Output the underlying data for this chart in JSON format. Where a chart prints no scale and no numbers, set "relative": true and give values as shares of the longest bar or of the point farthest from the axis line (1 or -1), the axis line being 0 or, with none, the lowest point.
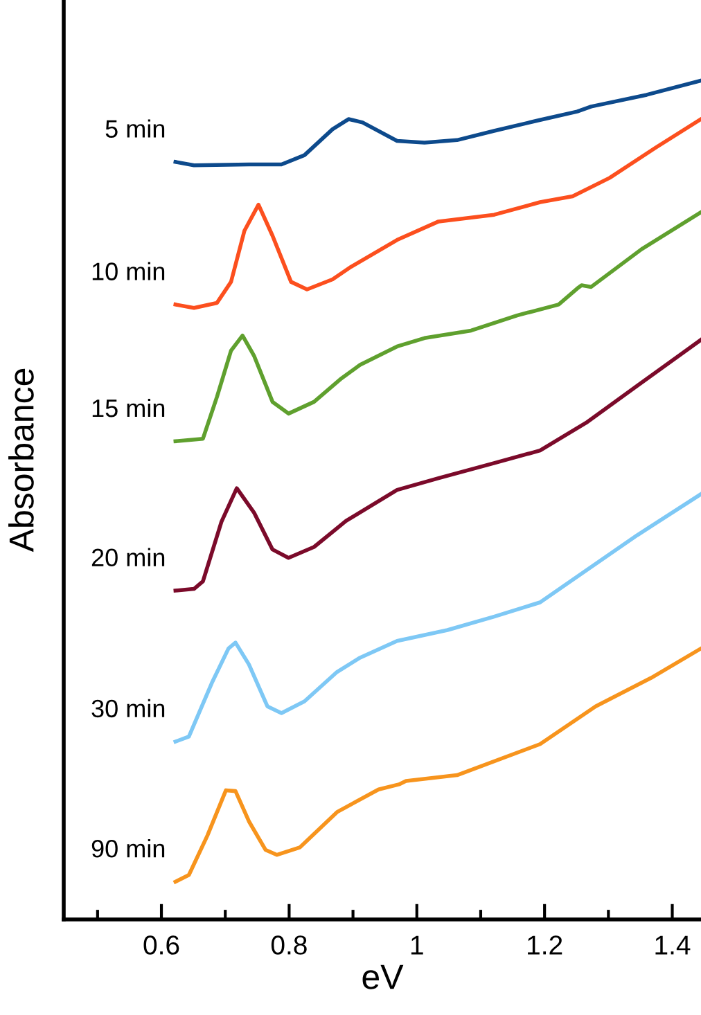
{
  "chart_data": {
    "type": "line",
    "xlabel": "eV",
    "ylabel": "Absorbance",
    "relative": true,
    "tick_labels": "x",
    "grid": false,
    "legend": false,
    "marker": "none",
    "line_style": "solid",
    "xlim": [
      0.447,
      1.445
    ],
    "xticks": [
      {
        "value": 0.5,
        "label": null
      },
      0.6,
      {
        "value": 0.7,
        "label": null
      },
      0.8,
      {
        "value": 0.9,
        "label": null
      },
      1,
      {
        "value": 1.1,
        "label": null
      },
      1.2,
      {
        "value": 1.3,
        "label": null
      },
      1.4
    ],
    "series": [
      {
        "name": "5 min",
        "color": "#0d4a8c",
        "x": [
          0.622,
          0.651,
          0.737,
          0.788,
          0.824,
          0.868,
          0.893,
          0.915,
          0.969,
          1.012,
          1.063,
          1.121,
          1.193,
          1.251,
          1.273,
          1.36,
          1.445
        ],
        "values": [
          0.903,
          0.899,
          0.9,
          0.9,
          0.911,
          0.942,
          0.954,
          0.95,
          0.928,
          0.926,
          0.929,
          0.94,
          0.953,
          0.963,
          0.969,
          0.983,
          1
        ]
      },
      {
        "name": "10 min",
        "color": "#fc4f1e",
        "x": [
          0.622,
          0.651,
          0.687,
          0.709,
          0.73,
          0.752,
          0.774,
          0.803,
          0.828,
          0.868,
          0.897,
          0.969,
          1.034,
          1.121,
          1.193,
          1.244,
          1.302,
          1.374,
          1.445
        ],
        "values": [
          0.733,
          0.729,
          0.735,
          0.76,
          0.821,
          0.852,
          0.815,
          0.76,
          0.751,
          0.763,
          0.778,
          0.81,
          0.832,
          0.84,
          0.855,
          0.862,
          0.884,
          0.92,
          0.954
        ]
      },
      {
        "name": "15 min",
        "color": "#5fa02e",
        "x": [
          0.622,
          0.665,
          0.687,
          0.709,
          0.727,
          0.745,
          0.774,
          0.799,
          0.839,
          0.882,
          0.911,
          0.969,
          1.012,
          1.085,
          1.157,
          1.222,
          1.251,
          1.258,
          1.273,
          1.352,
          1.445
        ],
        "values": [
          0.57,
          0.573,
          0.623,
          0.678,
          0.696,
          0.672,
          0.617,
          0.603,
          0.617,
          0.645,
          0.661,
          0.683,
          0.693,
          0.702,
          0.72,
          0.733,
          0.752,
          0.756,
          0.754,
          0.799,
          0.843
        ]
      },
      {
        "name": "20 min",
        "color": "#7b0a2a",
        "x": [
          0.622,
          0.651,
          0.665,
          0.694,
          0.718,
          0.745,
          0.774,
          0.799,
          0.839,
          0.889,
          0.969,
          1.034,
          1.121,
          1.193,
          1.265,
          1.345,
          1.445
        ],
        "values": [
          0.392,
          0.394,
          0.403,
          0.474,
          0.514,
          0.485,
          0.441,
          0.431,
          0.444,
          0.475,
          0.512,
          0.526,
          0.544,
          0.559,
          0.592,
          0.636,
          0.691
        ]
      },
      {
        "name": "30 min",
        "color": "#7ec8f5",
        "x": [
          0.622,
          0.643,
          0.679,
          0.705,
          0.716,
          0.737,
          0.766,
          0.788,
          0.824,
          0.875,
          0.911,
          0.969,
          1.048,
          1.121,
          1.193,
          1.265,
          1.345,
          1.445
        ],
        "values": [
          0.212,
          0.218,
          0.282,
          0.323,
          0.33,
          0.304,
          0.254,
          0.246,
          0.26,
          0.295,
          0.312,
          0.332,
          0.345,
          0.361,
          0.378,
          0.416,
          0.458,
          0.507
        ]
      },
      {
        "name": "90 min",
        "color": "#f7941d",
        "x": [
          0.622,
          0.643,
          0.672,
          0.701,
          0.716,
          0.737,
          0.763,
          0.781,
          0.817,
          0.875,
          0.94,
          0.972,
          0.983,
          1.063,
          1.193,
          1.28,
          1.367,
          1.445
        ],
        "values": [
          0.045,
          0.053,
          0.1,
          0.154,
          0.153,
          0.117,
          0.083,
          0.077,
          0.086,
          0.128,
          0.155,
          0.161,
          0.165,
          0.172,
          0.209,
          0.254,
          0.288,
          0.323
        ]
      }
    ]
  }
}
